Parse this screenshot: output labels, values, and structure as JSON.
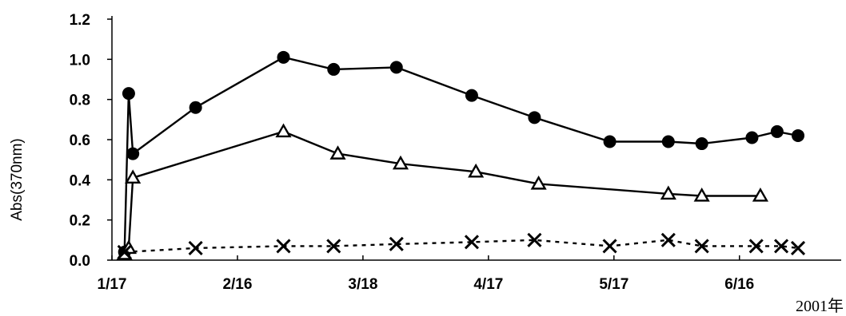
{
  "chart_data": {
    "type": "line",
    "ylabel": "Abs(370nm)",
    "xlabel": "2001年",
    "ylim": [
      0,
      1.2
    ],
    "yticks": [
      "0.0",
      "0.2",
      "0.4",
      "0.6",
      "0.8",
      "1.0",
      "1.2"
    ],
    "xlim": [
      "2001-01-17",
      "2001-06-30"
    ],
    "xticks": [
      "1/17",
      "2/16",
      "3/18",
      "4/17",
      "5/17",
      "6/16"
    ],
    "grid": false,
    "series": [
      {
        "marker": "filled-circle",
        "line": "solid",
        "color": "#000000",
        "points": [
          {
            "x": "2001-01-20",
            "y": 0.04
          },
          {
            "x": "2001-01-21",
            "y": 0.83
          },
          {
            "x": "2001-01-22",
            "y": 0.53
          },
          {
            "x": "2001-02-06",
            "y": 0.76
          },
          {
            "x": "2001-02-27",
            "y": 1.01
          },
          {
            "x": "2001-03-11",
            "y": 0.95
          },
          {
            "x": "2001-03-26",
            "y": 0.96
          },
          {
            "x": "2001-04-13",
            "y": 0.82
          },
          {
            "x": "2001-04-28",
            "y": 0.71
          },
          {
            "x": "2001-05-16",
            "y": 0.59
          },
          {
            "x": "2001-05-30",
            "y": 0.59
          },
          {
            "x": "2001-06-07",
            "y": 0.58
          },
          {
            "x": "2001-06-19",
            "y": 0.61
          },
          {
            "x": "2001-06-25",
            "y": 0.64
          },
          {
            "x": "2001-06-30",
            "y": 0.62
          }
        ]
      },
      {
        "marker": "open-triangle",
        "line": "solid",
        "color": "#000000",
        "points": [
          {
            "x": "2001-01-20",
            "y": 0.03
          },
          {
            "x": "2001-01-21",
            "y": 0.06
          },
          {
            "x": "2001-01-22",
            "y": 0.41
          },
          {
            "x": "2001-02-27",
            "y": 0.64
          },
          {
            "x": "2001-03-12",
            "y": 0.53
          },
          {
            "x": "2001-03-27",
            "y": 0.48
          },
          {
            "x": "2001-04-14",
            "y": 0.44
          },
          {
            "x": "2001-04-29",
            "y": 0.38
          },
          {
            "x": "2001-05-30",
            "y": 0.33
          },
          {
            "x": "2001-06-07",
            "y": 0.32
          },
          {
            "x": "2001-06-21",
            "y": 0.32
          }
        ]
      },
      {
        "marker": "cross",
        "line": "dotted",
        "color": "#000000",
        "points": [
          {
            "x": "2001-01-20",
            "y": 0.04
          },
          {
            "x": "2001-02-06",
            "y": 0.06
          },
          {
            "x": "2001-02-27",
            "y": 0.07
          },
          {
            "x": "2001-03-11",
            "y": 0.07
          },
          {
            "x": "2001-03-26",
            "y": 0.08
          },
          {
            "x": "2001-04-13",
            "y": 0.09
          },
          {
            "x": "2001-04-28",
            "y": 0.1
          },
          {
            "x": "2001-05-16",
            "y": 0.07
          },
          {
            "x": "2001-05-30",
            "y": 0.1
          },
          {
            "x": "2001-06-07",
            "y": 0.07
          },
          {
            "x": "2001-06-20",
            "y": 0.07
          },
          {
            "x": "2001-06-26",
            "y": 0.07
          },
          {
            "x": "2001-06-30",
            "y": 0.06
          }
        ]
      }
    ]
  }
}
